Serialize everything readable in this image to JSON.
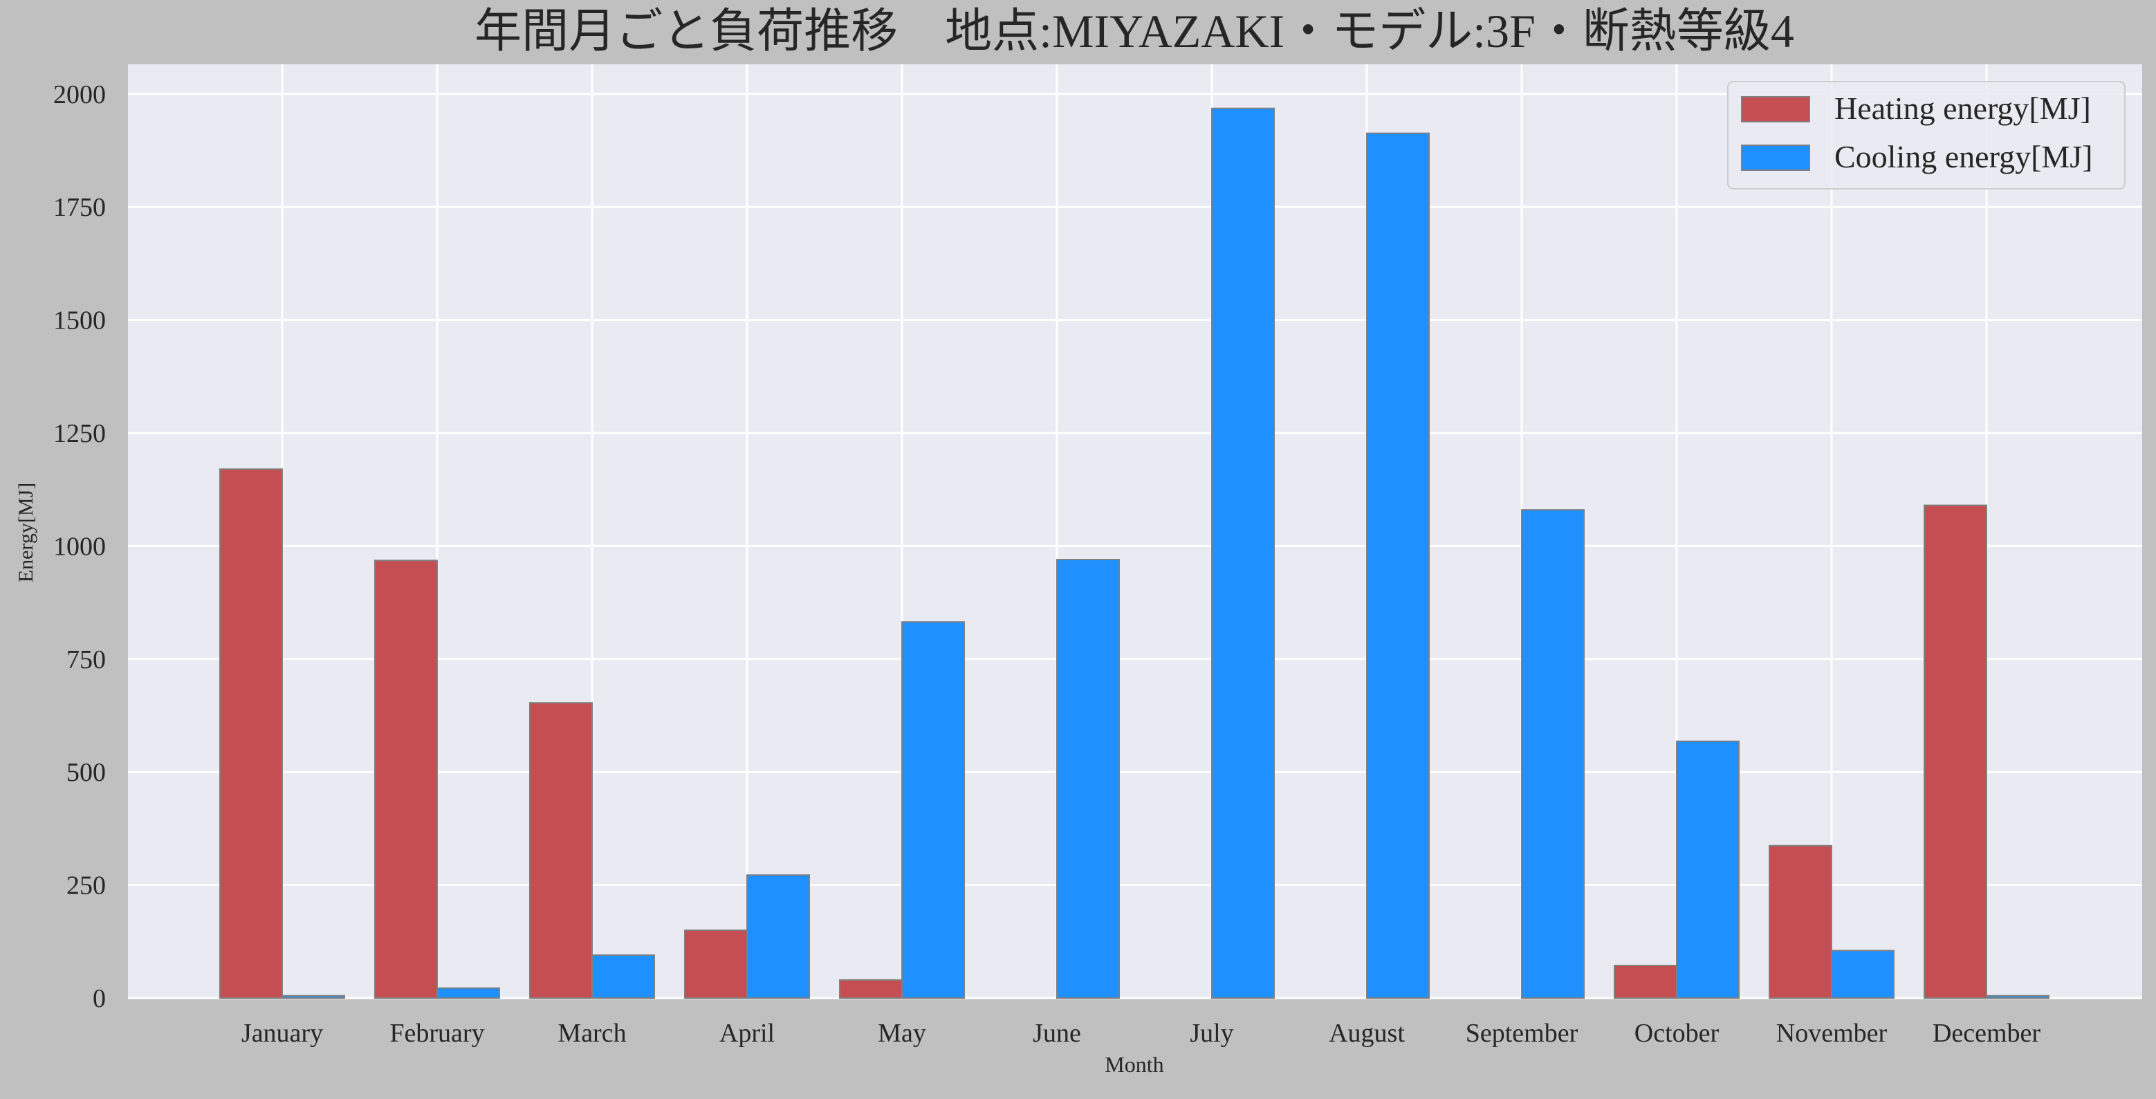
{
  "chart_data": {
    "type": "bar",
    "title": "年間月ごと負荷推移　地点:MIYAZAKI・モデル:3F・断熱等級4",
    "xlabel": "Month",
    "ylabel": "Energy[MJ]",
    "categories": [
      "January",
      "February",
      "March",
      "April",
      "May",
      "June",
      "July",
      "August",
      "September",
      "October",
      "November",
      "December"
    ],
    "yticks": [
      "0",
      "250",
      "500",
      "750",
      "1000",
      "1250",
      "1500",
      "1750",
      "2000"
    ],
    "ylim": [
      0,
      2065
    ],
    "grid": true,
    "legend_position": "top-right",
    "series": [
      {
        "name": "Heating energy[MJ]",
        "color": "#c44e52",
        "values": [
          1170,
          968,
          653,
          150,
          40,
          0,
          0,
          0,
          0,
          72,
          337,
          1090
        ]
      },
      {
        "name": "Cooling energy[MJ]",
        "color": "#1e90ff",
        "values": [
          5,
          22,
          95,
          272,
          832,
          970,
          1968,
          1913,
          1080,
          568,
          105,
          5
        ]
      }
    ],
    "colors": {
      "page_background": "#c0c0c0",
      "plot_background": "#eaeaf2",
      "grid": "#ffffff",
      "bar_edge": "#808080"
    }
  }
}
